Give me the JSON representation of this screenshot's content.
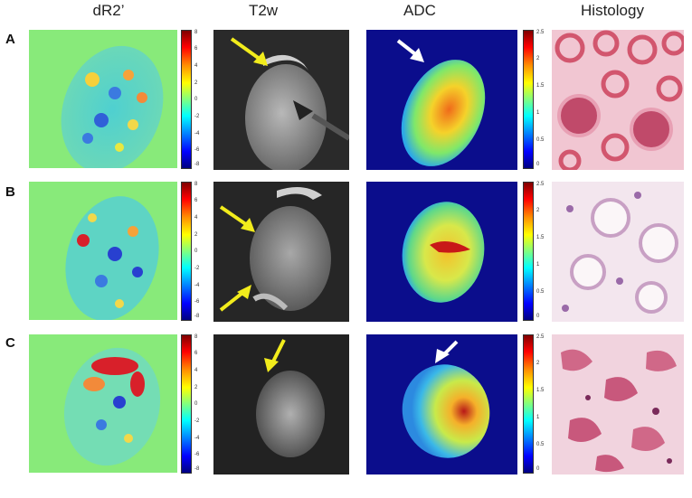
{
  "columns": [
    "dR2’",
    "T2w",
    "ADC",
    "Histology"
  ],
  "rows": [
    "A",
    "B",
    "C"
  ],
  "dr2_colorbar_ticks": [
    "8",
    "6",
    "4",
    "2",
    "0",
    "-2",
    "-4",
    "-6",
    "-8"
  ],
  "adc_colorbar_ticks": [
    "2.5",
    "2",
    "1.5",
    "1",
    "0.5",
    "0"
  ],
  "colors": {
    "green_bg": "#88ea7a",
    "adc_bg": "#0b0d8c",
    "arrow_yellow": "#f2ec1c",
    "arrow_white": "#ffffff",
    "histology_pink": "#e89aac"
  }
}
